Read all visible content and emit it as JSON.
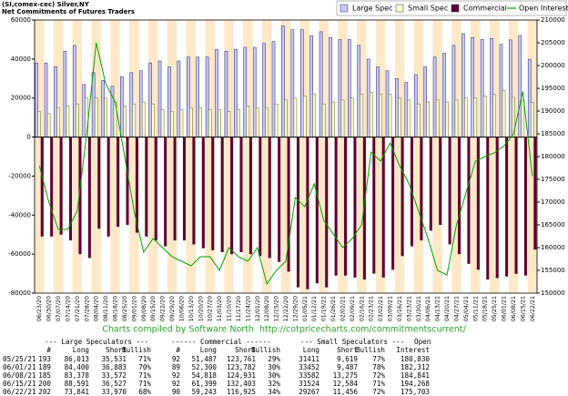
{
  "chart_data": {
    "type": "bar",
    "title": "(SI,comex-cec) Silver,NY",
    "subtitle": "Net Commitments of Futures Traders",
    "categories": [
      "06/23/20",
      "06/30/20",
      "07/07/20",
      "07/14/20",
      "07/21/20",
      "07/28/20",
      "08/04/20",
      "08/11/20",
      "08/18/20",
      "08/25/20",
      "09/01/20",
      "09/08/20",
      "09/15/20",
      "09/22/20",
      "09/29/20",
      "10/06/20",
      "10/13/20",
      "10/20/20",
      "10/27/20",
      "11/03/20",
      "11/10/20",
      "11/17/20",
      "11/24/20",
      "12/01/20",
      "12/08/20",
      "12/15/20",
      "12/22/20",
      "12/29/20",
      "01/05/21",
      "01/12/21",
      "01/19/21",
      "01/26/21",
      "02/02/21",
      "02/09/21",
      "02/16/21",
      "02/23/21",
      "03/02/21",
      "03/09/21",
      "03/16/21",
      "03/23/21",
      "03/30/21",
      "04/06/21",
      "04/13/21",
      "04/20/21",
      "04/27/21",
      "05/04/21",
      "05/11/21",
      "05/18/21",
      "05/25/21",
      "06/01/21",
      "06/08/21",
      "06/15/21",
      "06/22/21"
    ],
    "series": [
      {
        "name": "Large Spec",
        "color": "#c8c8f4",
        "values": [
          38000,
          38000,
          36000,
          44000,
          47000,
          27000,
          33000,
          29000,
          26000,
          31000,
          33000,
          34000,
          38000,
          39000,
          36000,
          39000,
          41000,
          41000,
          41000,
          45000,
          44000,
          45000,
          46000,
          46000,
          48000,
          49000,
          57000,
          55000,
          55000,
          52000,
          54000,
          51000,
          50000,
          50000,
          47000,
          40000,
          36000,
          34000,
          30000,
          28000,
          32000,
          36000,
          41000,
          43000,
          47000,
          53000,
          51000,
          50000,
          50482,
          47517,
          49806,
          52064,
          39871
        ]
      },
      {
        "name": "Small Spec",
        "color": "#ffffd0",
        "values": [
          13000,
          12000,
          15000,
          16000,
          17000,
          20000,
          20000,
          20000,
          18000,
          16000,
          17000,
          18000,
          17000,
          14000,
          13000,
          14000,
          15000,
          15000,
          14000,
          14000,
          13000,
          14000,
          16000,
          15000,
          15000,
          17000,
          19000,
          20000,
          21000,
          22000,
          17000,
          18000,
          19000,
          20000,
          22000,
          23000,
          22000,
          22000,
          20000,
          19000,
          17000,
          18000,
          19000,
          18000,
          19000,
          20000,
          20000,
          21000,
          21792,
          23965,
          20307,
          18940,
          17811
        ]
      },
      {
        "name": "Commercial",
        "color": "#600030",
        "values": [
          -51000,
          -51000,
          -50000,
          -53000,
          -60000,
          -62000,
          -47000,
          -51000,
          -46000,
          -45000,
          -49000,
          -51000,
          -53000,
          -56000,
          -53000,
          -53000,
          -55000,
          -57000,
          -58000,
          -59000,
          -60000,
          -59000,
          -60000,
          -61000,
          -62000,
          -64000,
          -69000,
          -77000,
          -78000,
          -75000,
          -77000,
          -71000,
          -71000,
          -72000,
          -73000,
          -70000,
          -72000,
          -68000,
          -61000,
          -56000,
          -53000,
          -48000,
          -45000,
          -55000,
          -60000,
          -65000,
          -68000,
          -73000,
          -72274,
          -71482,
          -70113,
          -71004,
          -57682
        ]
      },
      {
        "name": "Open Interest",
        "color": "#00a000",
        "axis": "y2",
        "values": [
          178000,
          170000,
          164000,
          164000,
          168000,
          185000,
          205000,
          196000,
          192000,
          180000,
          168000,
          159000,
          162000,
          160000,
          158000,
          157000,
          156000,
          158000,
          158000,
          155000,
          160000,
          158000,
          157000,
          160000,
          152000,
          155000,
          157000,
          171000,
          169000,
          174000,
          166000,
          163000,
          160000,
          162000,
          165000,
          181000,
          179000,
          183000,
          178000,
          174000,
          168000,
          162000,
          155000,
          154000,
          165000,
          172000,
          179000,
          180000,
          180830,
          182312,
          184841,
          194268,
          175703
        ]
      }
    ],
    "ylim": [
      -80000,
      60000
    ],
    "yticks": [
      -80000,
      -60000,
      -40000,
      -20000,
      0,
      20000,
      40000,
      60000
    ],
    "y2lim": [
      150000,
      210000
    ],
    "y2ticks": [
      150000,
      155000,
      160000,
      165000,
      170000,
      175000,
      180000,
      185000,
      190000,
      195000,
      200000,
      205000,
      210000
    ],
    "legend": "top-right",
    "annotation": "Charts compiled by Software North  http://cotpricecharts.com/commitmentscurrent/"
  },
  "table": {
    "groups": [
      "--- Large Speculators ---",
      "------ Commercial ------",
      "--- Small Speculators ---",
      "Open"
    ],
    "columns": [
      "#",
      "Long",
      "Short",
      "Bullish",
      "#",
      "Long",
      "Short",
      "Bullish",
      "Long",
      "Short",
      "Bullish",
      "Interest"
    ],
    "rows": [
      [
        "05/25/21",
        "193",
        "86,013",
        "35,531",
        "71%",
        "92",
        "51,487",
        "123,761",
        "29%",
        "31411",
        "9,619",
        "77%",
        "180,830"
      ],
      [
        "06/01/21",
        "189",
        "84,400",
        "36,883",
        "70%",
        "89",
        "52,300",
        "123,782",
        "30%",
        "33452",
        "9,487",
        "78%",
        "182,312"
      ],
      [
        "06/08/21",
        "185",
        "83,378",
        "33,572",
        "71%",
        "92",
        "54,818",
        "124,931",
        "30%",
        "33582",
        "13,275",
        "72%",
        "184,841"
      ],
      [
        "06/15/21",
        "200",
        "88,591",
        "36,527",
        "71%",
        "92",
        "61,399",
        "132,403",
        "32%",
        "31524",
        "12,584",
        "71%",
        "194,268"
      ],
      [
        "06/22/21",
        "202",
        "73,841",
        "33,970",
        "68%",
        "90",
        "59,243",
        "116,925",
        "34%",
        "29267",
        "11,456",
        "72%",
        "175,703"
      ]
    ]
  }
}
